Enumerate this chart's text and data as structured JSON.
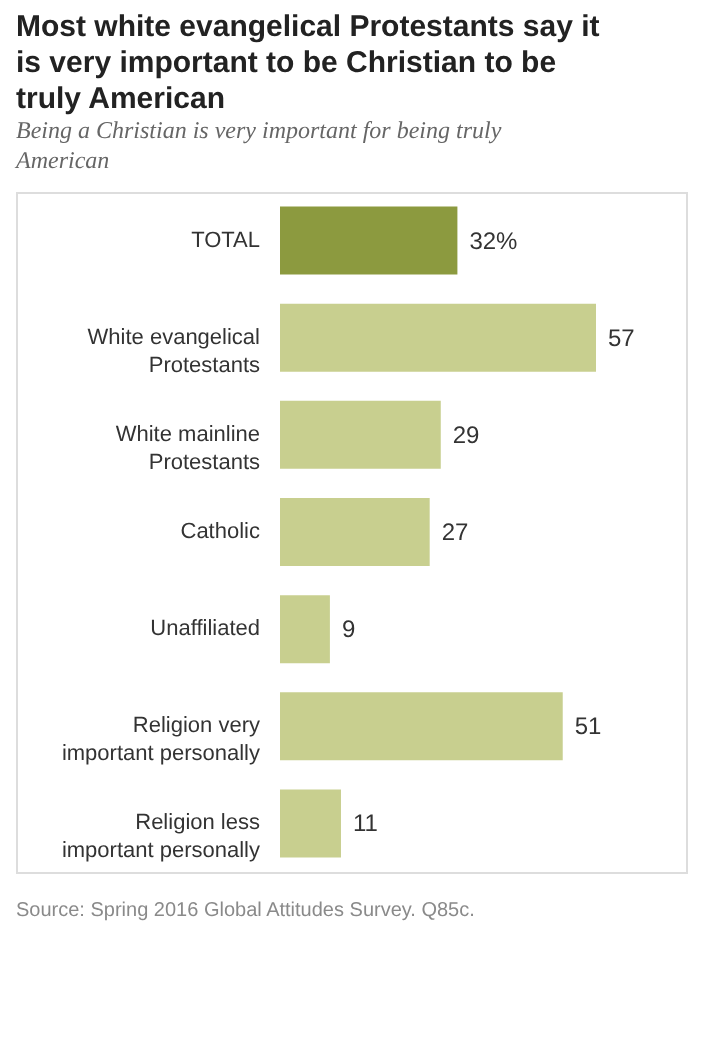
{
  "chart_data": {
    "type": "bar",
    "orientation": "horizontal",
    "title": "Most white evangelical Protestants say it is very important to be Christian to be truly American",
    "subtitle": "Being a Christian is very important for being truly American",
    "categories": [
      "TOTAL",
      "White evangelical Protestants",
      "White mainline Protestants",
      "Catholic",
      "Unaffiliated",
      "Religion very important personally",
      "Religion less important personally"
    ],
    "values": [
      32,
      57,
      29,
      27,
      9,
      51,
      11
    ],
    "value_labels": [
      "32%",
      "57",
      "29",
      "27",
      "9",
      "51",
      "11"
    ],
    "colors": [
      "#8c9a3f",
      "#c8cf8f",
      "#c8cf8f",
      "#c8cf8f",
      "#c8cf8f",
      "#c8cf8f",
      "#c8cf8f"
    ],
    "annotations": [
      "Source: Spring 2016 Global Attitudes Survey. Q85c."
    ]
  }
}
